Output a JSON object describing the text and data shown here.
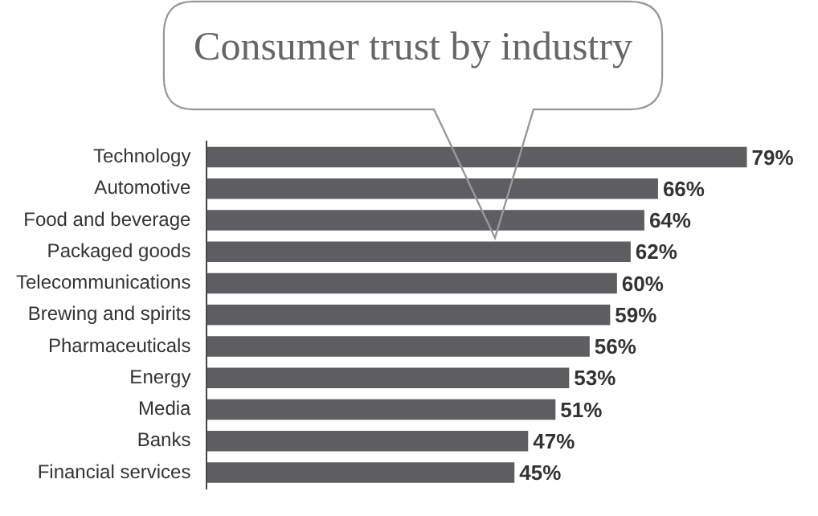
{
  "chart_data": {
    "type": "bar",
    "orientation": "horizontal",
    "title": "Consumer trust by industry",
    "categories": [
      "Technology",
      "Automotive",
      "Food and beverage",
      "Packaged goods",
      "Telecommunications",
      "Brewing and spirits",
      "Pharmaceuticals",
      "Energy",
      "Media",
      "Banks",
      "Financial services"
    ],
    "values": [
      79,
      66,
      64,
      62,
      60,
      59,
      56,
      53,
      51,
      47,
      45
    ],
    "value_labels": [
      "79%",
      "66%",
      "64%",
      "62%",
      "60%",
      "59%",
      "56%",
      "53%",
      "51%",
      "47%",
      "45%"
    ],
    "color": "#5e5e60",
    "tick_labels": "y"
  }
}
